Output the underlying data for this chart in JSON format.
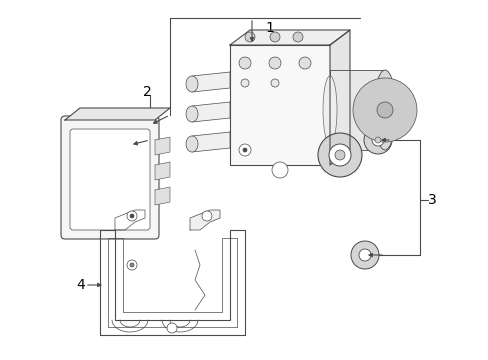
{
  "background_color": "#ffffff",
  "line_color": "#4a4a4a",
  "label_color": "#000000",
  "fig_width": 4.89,
  "fig_height": 3.6,
  "dpi": 100,
  "label_fontsize": 9,
  "lw_main": 0.8,
  "lw_thin": 0.5
}
